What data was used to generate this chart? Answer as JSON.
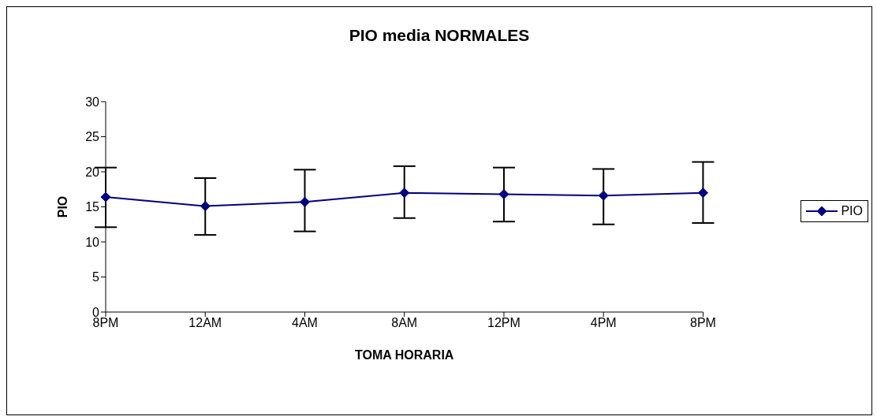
{
  "chart_data": {
    "type": "line",
    "title": "PIO media NORMALES",
    "xlabel": "TOMA HORARIA",
    "ylabel": "PIO",
    "categories": [
      "8PM",
      "12AM",
      "4AM",
      "8AM",
      "12PM",
      "4PM",
      "8PM"
    ],
    "series": [
      {
        "name": "PIO",
        "color": "#000080",
        "values": [
          16.4,
          15.1,
          15.7,
          17.0,
          16.8,
          16.6,
          17.0
        ],
        "errors": [
          [
            12.1,
            20.6
          ],
          [
            11.0,
            19.1
          ],
          [
            11.5,
            20.3
          ],
          [
            13.4,
            20.8
          ],
          [
            12.9,
            20.6
          ],
          [
            12.5,
            20.4
          ],
          [
            12.7,
            21.4
          ]
        ]
      }
    ],
    "ylim": [
      0,
      30
    ],
    "yticks": [
      0,
      5,
      10,
      15,
      20,
      25,
      30
    ],
    "grid": false,
    "legend": "right",
    "marker": "diamond",
    "line_style": "solid"
  }
}
